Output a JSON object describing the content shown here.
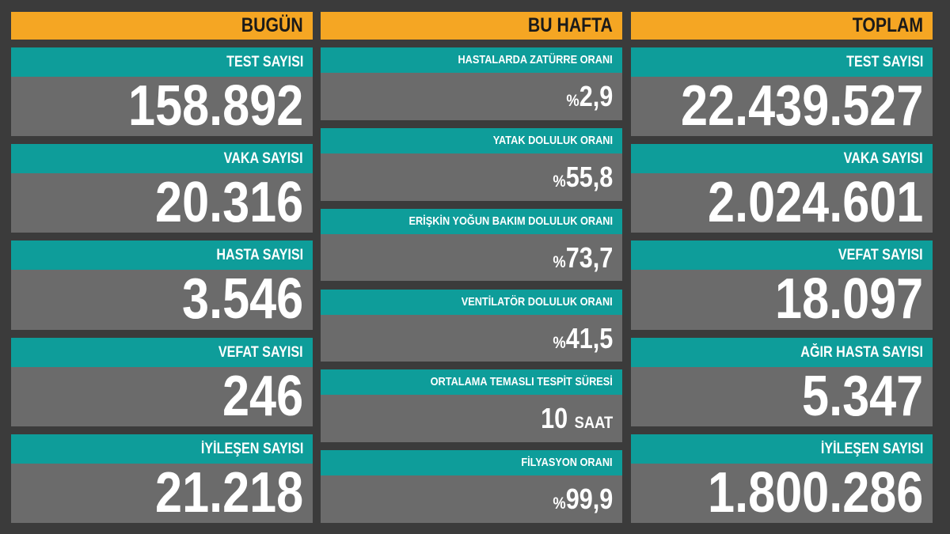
{
  "columns": [
    {
      "title": "BUGÜN",
      "items": [
        {
          "label": "TEST SAYISI",
          "value": "158.892"
        },
        {
          "label": "VAKA SAYISI",
          "value": "20.316"
        },
        {
          "label": "HASTA SAYISI",
          "value": "3.546"
        },
        {
          "label": "VEFAT SAYISI",
          "value": "246"
        },
        {
          "label": "İYİLEŞEN SAYISI",
          "value": "21.218"
        }
      ]
    },
    {
      "title": "BU HAFTA",
      "items": [
        {
          "label": "HASTALARDA ZATÜRRE ORANI",
          "prefix": "%",
          "value": "2,9"
        },
        {
          "label": "YATAK DOLULUK ORANI",
          "prefix": "%",
          "value": "55,8"
        },
        {
          "label": "ERİŞKİN YOĞUN BAKIM DOLULUK ORANI",
          "prefix": "%",
          "value": "73,7"
        },
        {
          "label": "VENTİLATÖR DOLULUK ORANI",
          "prefix": "%",
          "value": "41,5"
        },
        {
          "label": "ORTALAMA TEMASLI TESPİT SÜRESİ",
          "value": "10",
          "unit": "SAAT"
        },
        {
          "label": "FİLYASYON ORANI",
          "prefix": "%",
          "value": "99,9"
        }
      ]
    },
    {
      "title": "TOPLAM",
      "items": [
        {
          "label": "TEST SAYISI",
          "value": "22.439.527"
        },
        {
          "label": "VAKA SAYISI",
          "value": "2.024.601"
        },
        {
          "label": "VEFAT SAYISI",
          "value": "18.097"
        },
        {
          "label": "AĞIR HASTA SAYISI",
          "value": "5.347"
        },
        {
          "label": "İYİLEŞEN SAYISI",
          "value": "1.800.286"
        }
      ]
    }
  ]
}
